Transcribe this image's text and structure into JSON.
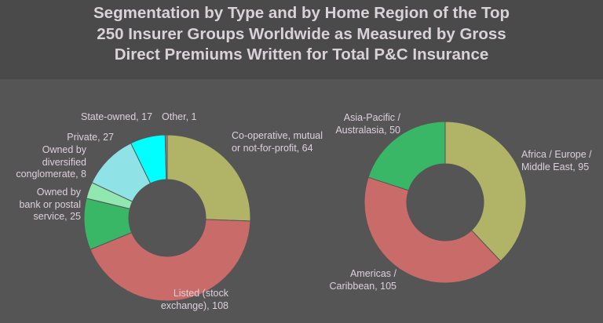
{
  "title": {
    "lines": [
      "Segmentation by Type and by Home Region of the Top",
      "250 Insurer Groups Worldwide as Measured by Gross",
      "Direct Premiums Written for Total P&C Insurance"
    ]
  },
  "colors": {
    "header_bg": "#4a4a4a",
    "plot_bg": "#555555",
    "text": "#ddd0dd"
  },
  "chart_data": [
    {
      "type": "pie",
      "subtype": "donut",
      "title": "Segmentation by Type",
      "categories": [
        "Co-operative, mutual or not-for-profit",
        "Listed (stock exchange)",
        "Owned by bank or postal service",
        "Owned by diversified conglomerate",
        "Private",
        "State-owned",
        "Other"
      ],
      "values": [
        64,
        108,
        25,
        8,
        27,
        17,
        1
      ],
      "colors": [
        "#b1b466",
        "#c96b68",
        "#39b766",
        "#90e8b0",
        "#8fe3e6",
        "#00ffff",
        "#8b8b8b"
      ],
      "labels": [
        [
          "Co-operative, mutual",
          "or not-for-profit, 64"
        ],
        [
          "Listed (stock",
          "exchange), 108"
        ],
        [
          "Owned by",
          "bank or postal",
          "service, 25"
        ],
        [
          "Owned by",
          "diversified",
          "conglomerate, 8"
        ],
        [
          "Private, 27"
        ],
        [
          "State-owned, 17"
        ],
        [
          "Other, 1"
        ]
      ],
      "total": 250
    },
    {
      "type": "pie",
      "subtype": "donut",
      "title": "Segmentation by Home Region",
      "categories": [
        "Africa / Europe / Middle East",
        "Americas / Caribbean",
        "Asia-Pacific / Australasia"
      ],
      "values": [
        95,
        105,
        50
      ],
      "colors": [
        "#b1b466",
        "#c96b68",
        "#39b766"
      ],
      "labels": [
        [
          "Africa / Europe /",
          "Middle East, 95"
        ],
        [
          "Americas /",
          "Caribbean, 105"
        ],
        [
          "Asia-Pacific /",
          "Australasia, 50"
        ]
      ],
      "total": 250
    }
  ]
}
